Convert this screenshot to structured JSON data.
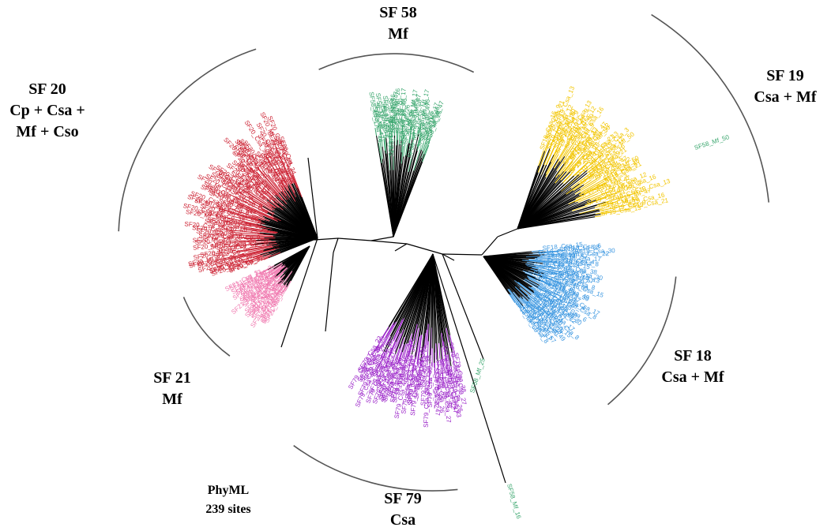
{
  "tree": {
    "method": "PhyML",
    "sites": "239 sites",
    "clusters": [
      {
        "id": "sf58",
        "title": "SF 58",
        "subtitle": "Mf",
        "color": "#3aa66e",
        "labels": [
          "SF58_Mf_17",
          "SF58_Mf_46",
          "SF58_Mf_47",
          "SF58_Mf_26",
          "SF58_Mf_5"
        ]
      },
      {
        "id": "sf19",
        "title": "SF 19",
        "subtitle": "Csa + Mf",
        "color": "#f2c500",
        "labels": [
          "SF19_Csa_16",
          "SF19_Csa_9",
          "SF19_Csa_21",
          "SF19_Csa_13",
          "SF19_Csa_3",
          "SF19_Mf_47",
          "SF19_Csa_12",
          "SF58_Mf_50"
        ]
      },
      {
        "id": "sf20",
        "title": "SF 20",
        "subtitle": "Cp + Csa +",
        "subtitle2": "Mf + Cso",
        "color": "#cc2233",
        "labels": [
          "SF20_Mf_32",
          "SF20_Cp_9",
          "SF20_Csa_30",
          "SF20_Mf_34",
          "SF20_Csa_",
          "SF20_Cp_38",
          "SF20_Csa_13",
          "SF20_Mf_25",
          "SF20_Csa_26",
          "SF20_Csa_1"
        ]
      },
      {
        "id": "sf21",
        "title": "SF 21",
        "subtitle": "Mf",
        "color": "#f07ab0",
        "labels": [
          "SF21_Mf_13",
          "SF21_Csa_3"
        ]
      },
      {
        "id": "sf79",
        "title": "SF 79",
        "subtitle": "Csa",
        "color": "#9a22c8",
        "labels": [
          "SF79_Csa_38",
          "SF79_Csa_27",
          "SF79_Csa_49",
          "SF79_Csa_26",
          "SF79_Csa_33",
          "SF79_Csa_47",
          "SF79_Csa_22",
          "SF79_Csa_46"
        ]
      },
      {
        "id": "sf18",
        "title": "SF 18",
        "subtitle": "Csa + Mf",
        "color": "#3a96e0",
        "labels": [
          "SF18_Csa_15",
          "SF18_Csa_6",
          "SF18_Csa_38",
          "SF18_Csa_49",
          "SF18_Csa_30",
          "SF18_Csa_22",
          "SF18_Mf_13",
          "SF18_Mf_57",
          "SF18_Csa_17",
          "SF18_Csa_4",
          "SF18_Csa_8",
          "SF18_Mf_60"
        ]
      }
    ],
    "outliers": [
      {
        "label": "SF58_Mf_25",
        "color": "#3aa66e"
      },
      {
        "label": "SF58_Mf_16",
        "color": "#3aa66e"
      }
    ]
  }
}
